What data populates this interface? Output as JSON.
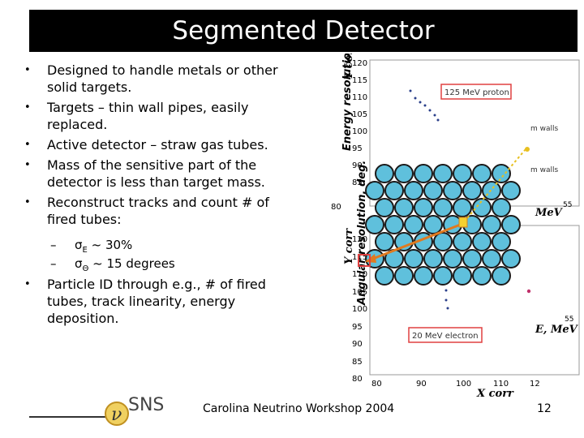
{
  "slide": {
    "title": "Segmented Detector",
    "bullets": [
      "Designed to handle metals or other solid targets.",
      "Targets – thin wall pipes, easily replaced.",
      "Active detector – straw gas tubes.",
      "Mass of the sensitive part of the detector is less than target mass.",
      "Reconstruct tracks and count # of fired tubes:"
    ],
    "sub_bullets": [
      {
        "dash": "–",
        "symbol": "σ",
        "subscript": "E",
        "text": " ~ 30%"
      },
      {
        "dash": "–",
        "symbol": "σ",
        "subscript": "Θ",
        "text": " ~ 15 degrees"
      }
    ],
    "last_bullet": "Particle ID through e.g., # of fired tubes, track linearity, energy deposition.",
    "bullet_symbol": "•",
    "footer": "Carolina Neutrino Workshop 2004",
    "page_number": "12"
  },
  "figure": {
    "top_axis_label": "Y corr",
    "top_ticks": [
      "120",
      "115",
      "110",
      "105",
      "100",
      "95",
      "90",
      "85",
      "80"
    ],
    "top_left_label": "Energy resolution, %",
    "top_right_label": "MeV",
    "top_right_value": "55",
    "top_bottom_left": "80",
    "proton_label": "125 MeV proton",
    "walls_label_1": "m walls",
    "walls_label_2": "m walls",
    "bottom_axis_label": "Y corr",
    "bottom_ticks": [
      "120",
      "115",
      "110",
      "105",
      "100",
      "95",
      "90",
      "85",
      "80"
    ],
    "bottom_left_label": "Angular resolution, deg.",
    "bottom_right_label": "E, MeV",
    "bottom_right_value": "55",
    "electron_label": "20 MeV electron",
    "x_ticks": [
      "80",
      "90",
      "100",
      "110",
      "12"
    ],
    "x_axis_label": "X corr"
  },
  "logo": {
    "text": "SNS",
    "glyph": "ν"
  },
  "colors": {
    "title_bg": "#000000",
    "tube_fill": "#5fc0dc",
    "track": "#e07a20",
    "highlight": "#e04040"
  }
}
